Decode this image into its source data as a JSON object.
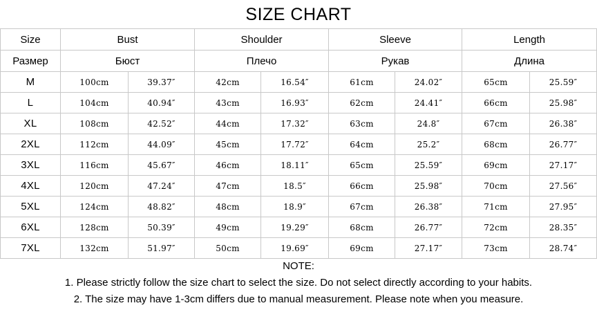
{
  "title": "SIZE CHART",
  "headers_en": [
    "Size",
    "Bust",
    "Shoulder",
    "Sleeve",
    "Length"
  ],
  "headers_ru": [
    "Размер",
    "Бюст",
    "Плечо",
    "Рукав",
    "Длина"
  ],
  "rows": [
    [
      "M",
      "100cm",
      "39.37″",
      "42cm",
      "16.54″",
      "61cm",
      "24.02″",
      "65cm",
      "25.59″"
    ],
    [
      "L",
      "104cm",
      "40.94″",
      "43cm",
      "16.93″",
      "62cm",
      "24.41″",
      "66cm",
      "25.98″"
    ],
    [
      "XL",
      "108cm",
      "42.52″",
      "44cm",
      "17.32″",
      "63cm",
      "24.8″",
      "67cm",
      "26.38″"
    ],
    [
      "2XL",
      "112cm",
      "44.09″",
      "45cm",
      "17.72″",
      "64cm",
      "25.2″",
      "68cm",
      "26.77″"
    ],
    [
      "3XL",
      "116cm",
      "45.67″",
      "46cm",
      "18.11″",
      "65cm",
      "25.59″",
      "69cm",
      "27.17″"
    ],
    [
      "4XL",
      "120cm",
      "47.24″",
      "47cm",
      "18.5″",
      "66cm",
      "25.98″",
      "70cm",
      "27.56″"
    ],
    [
      "5XL",
      "124cm",
      "48.82″",
      "48cm",
      "18.9″",
      "67cm",
      "26.38″",
      "71cm",
      "27.95″"
    ],
    [
      "6XL",
      "128cm",
      "50.39″",
      "49cm",
      "19.29″",
      "68cm",
      "26.77″",
      "72cm",
      "28.35″"
    ],
    [
      "7XL",
      "132cm",
      "51.97″",
      "50cm",
      "19.69″",
      "69cm",
      "27.17″",
      "73cm",
      "28.74″"
    ]
  ],
  "notes": {
    "heading": "NOTE:",
    "lines": [
      "1. Please strictly follow the size chart  to select the size. Do not select directly according to your habits.",
      "2. The size may have 1-3cm differs due to manual measurement. Please note when you measure."
    ]
  }
}
